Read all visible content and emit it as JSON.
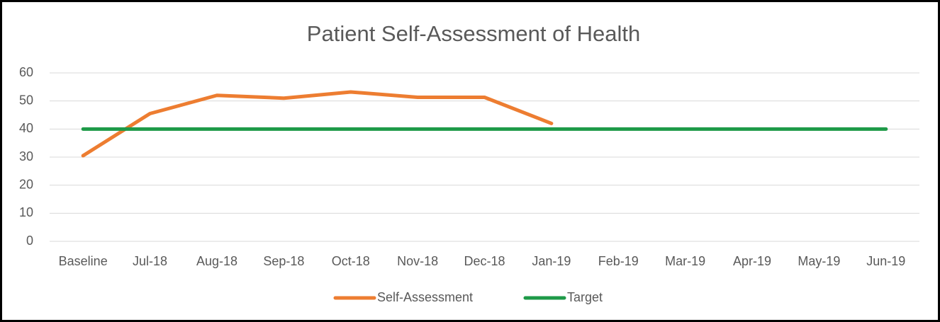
{
  "chart_data": {
    "type": "line",
    "title": "Patient Self-Assessment of Health",
    "categories": [
      "Baseline",
      "Jul-18",
      "Aug-18",
      "Sep-18",
      "Oct-18",
      "Nov-18",
      "Dec-18",
      "Jan-19",
      "Feb-19",
      "Mar-19",
      "Apr-19",
      "May-19",
      "Jun-19"
    ],
    "series": [
      {
        "name": "Self-Assessment",
        "color": "#ed7d31",
        "values": [
          30.5,
          45.5,
          52,
          51,
          53.2,
          51.3,
          51.3,
          42,
          null,
          null,
          null,
          null,
          null
        ]
      },
      {
        "name": "Target",
        "color": "#1e9a48",
        "values": [
          40,
          40,
          40,
          40,
          40,
          40,
          40,
          40,
          40,
          40,
          40,
          40,
          40
        ]
      }
    ],
    "ylim": [
      0,
      60
    ],
    "yticks": [
      0,
      10,
      20,
      30,
      40,
      50,
      60
    ],
    "grid": true,
    "legend": "bottom"
  }
}
